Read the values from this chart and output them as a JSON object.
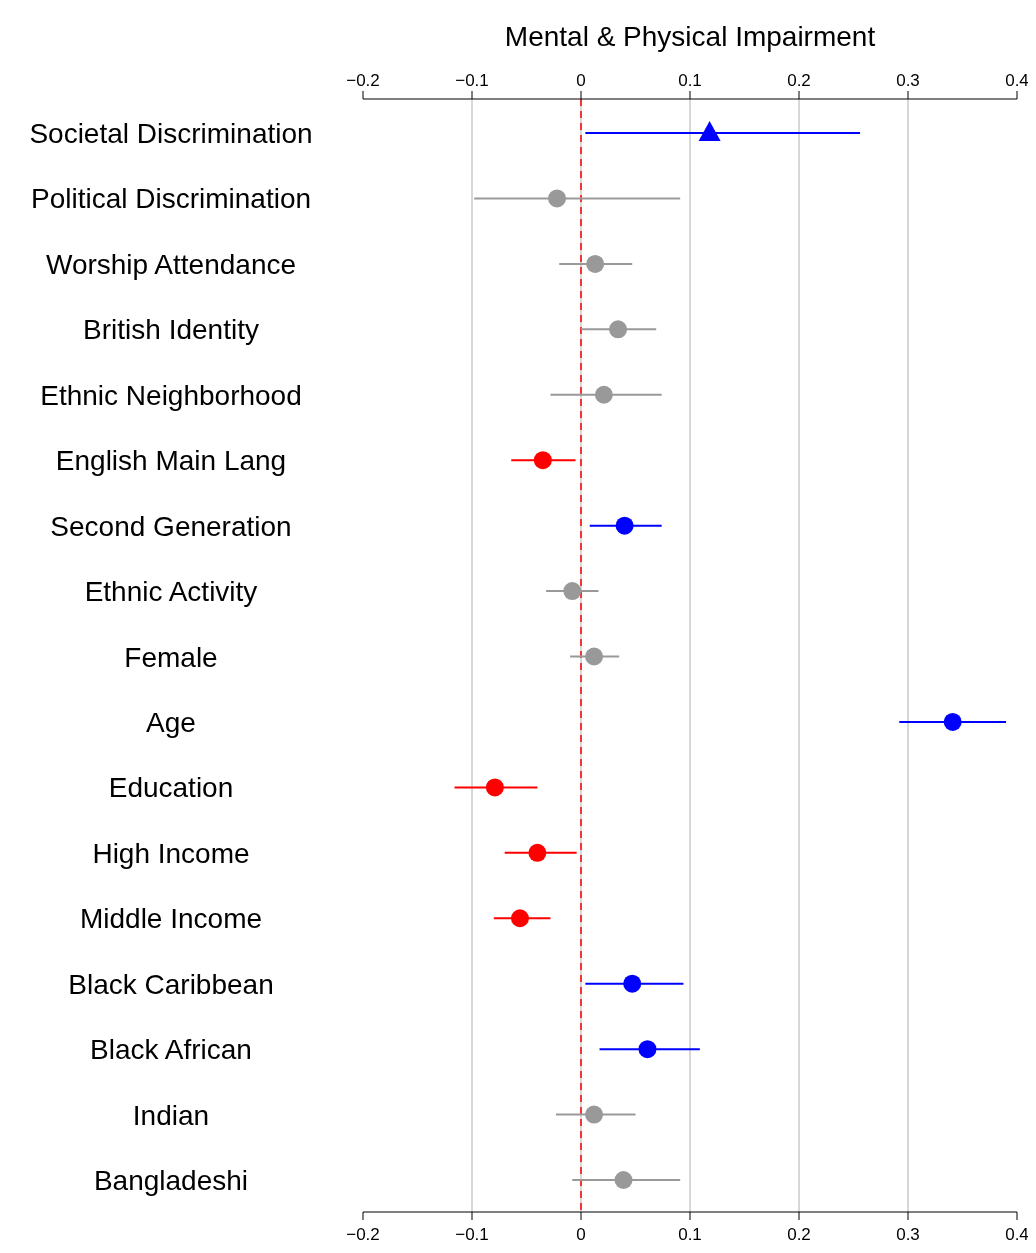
{
  "chart_data": {
    "type": "scatter",
    "orientation": "horizontal",
    "title": "Mental & Physical Impairment",
    "categories": [
      "Societal Discrimination",
      "Political Discrimination",
      "Worship Attendance",
      "British Identity",
      "Ethnic Neighborhood",
      "English Main Lang",
      "Second Generation",
      "Ethnic Activity",
      "Female",
      "Age",
      "Education",
      "High Income",
      "Middle Income",
      "Black Caribbean",
      "Black African",
      "Indian",
      "Bangladeshi"
    ],
    "series": [
      {
        "color": "#0000ff",
        "marker": "triangle",
        "values": [
          0.118,
          null,
          null,
          null,
          null,
          null,
          null,
          null,
          null,
          null,
          null,
          null,
          null,
          null,
          null,
          null,
          null
        ],
        "errors": [
          [
            0.004,
            0.256
          ],
          null,
          null,
          null,
          null,
          null,
          null,
          null,
          null,
          null,
          null,
          null,
          null,
          null,
          null,
          null,
          null
        ]
      },
      {
        "color": "#0000ff",
        "marker": "circle",
        "values": [
          null,
          null,
          null,
          null,
          null,
          null,
          0.04,
          null,
          null,
          0.341,
          null,
          null,
          null,
          0.047,
          0.061,
          null,
          null
        ],
        "errors": [
          null,
          null,
          null,
          null,
          null,
          null,
          [
            0.008,
            0.074
          ],
          null,
          null,
          [
            0.292,
            0.39
          ],
          null,
          null,
          null,
          [
            0.004,
            0.094
          ],
          [
            0.017,
            0.109
          ],
          null,
          null
        ]
      },
      {
        "color": "#999999",
        "marker": "circle",
        "values": [
          null,
          -0.022,
          0.013,
          0.034,
          0.021,
          null,
          null,
          -0.008,
          0.012,
          null,
          null,
          null,
          null,
          null,
          null,
          0.012,
          0.039
        ],
        "errors": [
          null,
          [
            -0.098,
            0.091
          ],
          [
            -0.02,
            0.047
          ],
          [
            0.0,
            0.069
          ],
          [
            -0.028,
            0.074
          ],
          null,
          null,
          [
            -0.032,
            0.016
          ],
          [
            -0.01,
            0.035
          ],
          null,
          null,
          null,
          null,
          null,
          null,
          [
            -0.023,
            0.05
          ],
          [
            -0.008,
            0.091
          ]
        ]
      },
      {
        "color": "#ff0000",
        "marker": "circle",
        "values": [
          null,
          null,
          null,
          null,
          null,
          -0.035,
          null,
          null,
          null,
          null,
          -0.079,
          -0.04,
          -0.056,
          null,
          null,
          null,
          null
        ],
        "errors": [
          null,
          null,
          null,
          null,
          null,
          [
            -0.064,
            -0.005
          ],
          null,
          null,
          null,
          null,
          [
            -0.116,
            -0.04
          ],
          [
            -0.07,
            -0.004
          ],
          [
            -0.08,
            -0.028
          ],
          null,
          null,
          null,
          null
        ]
      }
    ],
    "xlim": [
      -0.2,
      0.4
    ],
    "xticks": [
      {
        "value": -0.2,
        "label": "−0.2"
      },
      {
        "value": -0.1,
        "label": "−0.1"
      },
      0,
      0.1,
      0.2,
      0.3,
      0.4
    ],
    "x2lim": [
      -0.2,
      0.4
    ],
    "x2ticks": [
      {
        "value": -0.2,
        "label": "−0.2"
      },
      {
        "value": -0.1,
        "label": "−0.1"
      },
      0,
      0.1,
      0.2,
      0.3,
      0.4
    ],
    "grid": "x",
    "ref_lines": [
      {
        "axis": "x",
        "value": 0,
        "color": "#ff0000",
        "line_style": "dashed"
      }
    ]
  }
}
